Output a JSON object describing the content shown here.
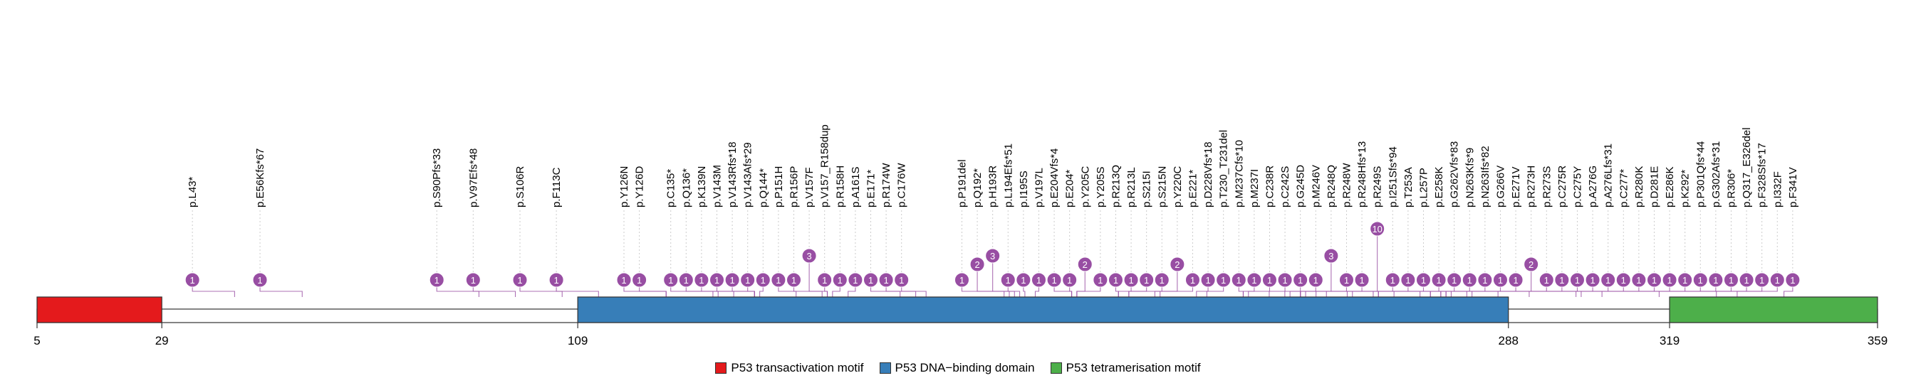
{
  "chart_data": {
    "type": "lollipop",
    "protein_length": 359,
    "x_ticks": [
      5,
      29,
      109,
      288,
      319,
      359
    ],
    "colors": {
      "transactivation": "#e41a1c",
      "dna_binding": "#377eb8",
      "tetramerisation": "#4daf4a",
      "lollipop": "#984ea3",
      "stem": "#984ea3"
    },
    "domains": [
      {
        "name": "P53 transactivation motif",
        "start": 5,
        "end": 29,
        "color": "#e41a1c"
      },
      {
        "name": "P53 DNA−binding domain",
        "start": 109,
        "end": 288,
        "color": "#377eb8"
      },
      {
        "name": "P53 tetramerisation motif",
        "start": 319,
        "end": 359,
        "color": "#4daf4a"
      }
    ],
    "legend": [
      "P53 transactivation motif",
      "P53 DNA−binding domain",
      "P53 tetramerisation motif"
    ],
    "mutations": [
      {
        "pos": 43,
        "count": 1,
        "label": "p.L43*"
      },
      {
        "pos": 56,
        "count": 1,
        "label": "p.E56Kfs*67"
      },
      {
        "pos": 90,
        "count": 1,
        "label": "p.S90Pfs*33"
      },
      {
        "pos": 97,
        "count": 1,
        "label": "p.V97Efs*48"
      },
      {
        "pos": 106,
        "count": 1,
        "label": "p.S106R"
      },
      {
        "pos": 113,
        "count": 1,
        "label": "p.F113C"
      },
      {
        "pos": 126,
        "count": 1,
        "label": "p.Y126N"
      },
      {
        "pos": 126,
        "count": 1,
        "label": "p.Y126D"
      },
      {
        "pos": 135,
        "count": 1,
        "label": "p.C135*"
      },
      {
        "pos": 136,
        "count": 1,
        "label": "p.Q136*"
      },
      {
        "pos": 139,
        "count": 1,
        "label": "p.K139N"
      },
      {
        "pos": 143,
        "count": 1,
        "label": "p.V143M"
      },
      {
        "pos": 143,
        "count": 1,
        "label": "p.V143Rfs*18"
      },
      {
        "pos": 143,
        "count": 1,
        "label": "p.V143Afs*29"
      },
      {
        "pos": 144,
        "count": 1,
        "label": "p.Q144*"
      },
      {
        "pos": 151,
        "count": 1,
        "label": "p.P151H"
      },
      {
        "pos": 156,
        "count": 1,
        "label": "p.R156P"
      },
      {
        "pos": 157,
        "count": 3,
        "label": "p.V157F"
      },
      {
        "pos": 157,
        "count": 1,
        "label": "p.V157_R158dup"
      },
      {
        "pos": 158,
        "count": 1,
        "label": "p.R158H"
      },
      {
        "pos": 161,
        "count": 1,
        "label": "p.A161S"
      },
      {
        "pos": 171,
        "count": 1,
        "label": "p.E171*"
      },
      {
        "pos": 174,
        "count": 1,
        "label": "p.R174W"
      },
      {
        "pos": 176,
        "count": 1,
        "label": "p.C176W"
      },
      {
        "pos": 191,
        "count": 1,
        "label": "p.P191del"
      },
      {
        "pos": 192,
        "count": 2,
        "label": "p.Q192*"
      },
      {
        "pos": 193,
        "count": 3,
        "label": "p.H193R"
      },
      {
        "pos": 194,
        "count": 1,
        "label": "p.L194Efs*51"
      },
      {
        "pos": 195,
        "count": 1,
        "label": "p.I195S"
      },
      {
        "pos": 197,
        "count": 1,
        "label": "p.V197L"
      },
      {
        "pos": 204,
        "count": 1,
        "label": "p.E204Vfs*4"
      },
      {
        "pos": 204,
        "count": 1,
        "label": "p.E204*"
      },
      {
        "pos": 205,
        "count": 2,
        "label": "p.Y205C"
      },
      {
        "pos": 205,
        "count": 1,
        "label": "p.Y205S"
      },
      {
        "pos": 213,
        "count": 1,
        "label": "p.R213Q"
      },
      {
        "pos": 213,
        "count": 1,
        "label": "p.R213L"
      },
      {
        "pos": 215,
        "count": 1,
        "label": "p.S215I"
      },
      {
        "pos": 215,
        "count": 1,
        "label": "p.S215N"
      },
      {
        "pos": 220,
        "count": 2,
        "label": "p.Y220C"
      },
      {
        "pos": 221,
        "count": 1,
        "label": "p.E221*"
      },
      {
        "pos": 228,
        "count": 1,
        "label": "p.D228Vfs*18"
      },
      {
        "pos": 230,
        "count": 1,
        "label": "p.T230_T231del"
      },
      {
        "pos": 237,
        "count": 1,
        "label": "p.M237Cfs*10"
      },
      {
        "pos": 237,
        "count": 1,
        "label": "p.M237I"
      },
      {
        "pos": 238,
        "count": 1,
        "label": "p.C238R"
      },
      {
        "pos": 242,
        "count": 1,
        "label": "p.C242S"
      },
      {
        "pos": 245,
        "count": 1,
        "label": "p.G245D"
      },
      {
        "pos": 246,
        "count": 1,
        "label": "p.M246V"
      },
      {
        "pos": 248,
        "count": 3,
        "label": "p.R248Q"
      },
      {
        "pos": 248,
        "count": 1,
        "label": "p.R248W"
      },
      {
        "pos": 248,
        "count": 1,
        "label": "p.R248Hfs*13"
      },
      {
        "pos": 249,
        "count": 10,
        "label": "p.R249S"
      },
      {
        "pos": 251,
        "count": 1,
        "label": "p.I251Sfs*94"
      },
      {
        "pos": 253,
        "count": 1,
        "label": "p.T253A"
      },
      {
        "pos": 257,
        "count": 1,
        "label": "p.L257P"
      },
      {
        "pos": 258,
        "count": 1,
        "label": "p.E258K"
      },
      {
        "pos": 262,
        "count": 1,
        "label": "p.G262Vfs*83"
      },
      {
        "pos": 263,
        "count": 1,
        "label": "p.N263Kfs*9"
      },
      {
        "pos": 263,
        "count": 1,
        "label": "p.N263Ifs*82"
      },
      {
        "pos": 266,
        "count": 1,
        "label": "p.G266V"
      },
      {
        "pos": 271,
        "count": 1,
        "label": "p.E271V"
      },
      {
        "pos": 273,
        "count": 2,
        "label": "p.R273H"
      },
      {
        "pos": 273,
        "count": 1,
        "label": "p.R273S"
      },
      {
        "pos": 275,
        "count": 1,
        "label": "p.C275R"
      },
      {
        "pos": 275,
        "count": 1,
        "label": "p.C275Y"
      },
      {
        "pos": 276,
        "count": 1,
        "label": "p.A276G"
      },
      {
        "pos": 276,
        "count": 1,
        "label": "p.A276Lfs*31"
      },
      {
        "pos": 277,
        "count": 1,
        "label": "p.C277*"
      },
      {
        "pos": 280,
        "count": 1,
        "label": "p.R280K"
      },
      {
        "pos": 281,
        "count": 1,
        "label": "p.D281E"
      },
      {
        "pos": 286,
        "count": 1,
        "label": "p.E286K"
      },
      {
        "pos": 292,
        "count": 1,
        "label": "p.K292*"
      },
      {
        "pos": 301,
        "count": 1,
        "label": "p.P301Qfs*44"
      },
      {
        "pos": 302,
        "count": 1,
        "label": "p.G302Afs*31"
      },
      {
        "pos": 306,
        "count": 1,
        "label": "p.R306*"
      },
      {
        "pos": 317,
        "count": 1,
        "label": "p.Q317_E326del"
      },
      {
        "pos": 328,
        "count": 1,
        "label": "p.F328Sfs*17"
      },
      {
        "pos": 332,
        "count": 1,
        "label": "p.I332F"
      },
      {
        "pos": 341,
        "count": 1,
        "label": "p.F341V"
      }
    ]
  }
}
